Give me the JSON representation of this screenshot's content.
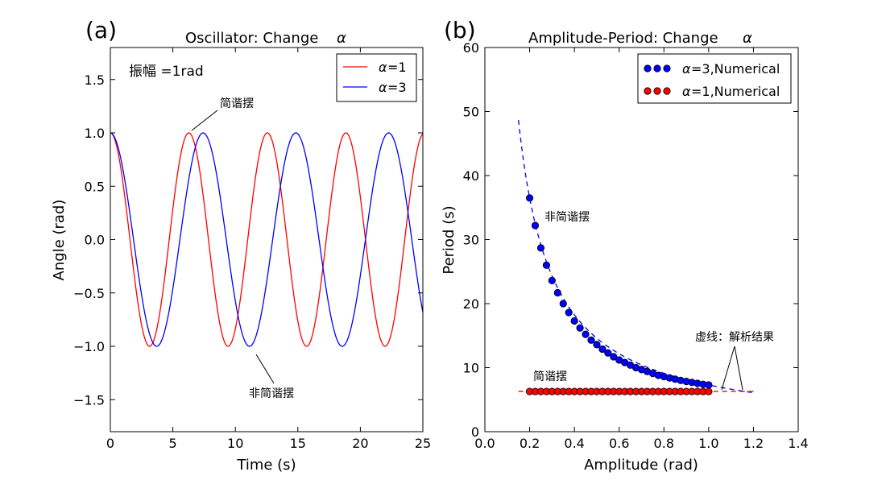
{
  "chart_data": [
    {
      "panel": "(a)",
      "type": "line",
      "title": "Oscillator: Change",
      "title_symbol": "α",
      "xlabel": "Time (s)",
      "ylabel": "Angle (rad)",
      "xlim": [
        0,
        25
      ],
      "ylim": [
        -1.8,
        1.8
      ],
      "xticks": [
        "0",
        "5",
        "10",
        "15",
        "20",
        "25"
      ],
      "xtick_values": [
        0,
        5,
        10,
        15,
        20,
        25
      ],
      "yticks": [
        "−1.5",
        "−1.0",
        "−0.5",
        "0.0",
        "0.5",
        "1.0",
        "1.5"
      ],
      "ytick_values": [
        -1.5,
        -1.0,
        -0.5,
        0.0,
        0.5,
        1.0,
        1.5
      ],
      "series": [
        {
          "name": "α=1",
          "color": "#ff0000",
          "amplitude": 1.0,
          "period": 6.28,
          "phase": "cos"
        },
        {
          "name": "α=3",
          "color": "#0000ff",
          "amplitude": 1.0,
          "period": 7.42,
          "phase": "cos"
        }
      ],
      "legend": {
        "position": "upper-right",
        "entries": [
          {
            "symbol": "α",
            "text": "=1",
            "color": "#ff0000"
          },
          {
            "symbol": "α",
            "text": "=3",
            "color": "#0000ff"
          }
        ]
      },
      "annotations": [
        {
          "id": "amp",
          "text": "振幅 =1rad"
        },
        {
          "id": "shm",
          "text": "简谐摆"
        },
        {
          "id": "nonshm",
          "text": "非简谐摆"
        }
      ]
    },
    {
      "panel": "(b)",
      "type": "scatter",
      "title": "Amplitude-Period: Change",
      "title_symbol": "α",
      "xlabel": "Amplitude (rad)",
      "ylabel": "Period (s)",
      "xlim": [
        0.0,
        1.4
      ],
      "ylim": [
        0,
        60
      ],
      "xticks": [
        "0.0",
        "0.2",
        "0.4",
        "0.6",
        "0.8",
        "1.0",
        "1.2",
        "1.4"
      ],
      "xtick_values": [
        0.0,
        0.2,
        0.4,
        0.6,
        0.8,
        1.0,
        1.2,
        1.4
      ],
      "yticks": [
        "0",
        "10",
        "20",
        "30",
        "40",
        "50",
        "60"
      ],
      "ytick_values": [
        0,
        10,
        20,
        30,
        40,
        50,
        60
      ],
      "series": [
        {
          "name": "α=3,Numerical",
          "color": "#0000ff",
          "x": [
            0.2,
            0.225,
            0.25,
            0.275,
            0.3,
            0.325,
            0.35,
            0.375,
            0.4,
            0.425,
            0.45,
            0.475,
            0.5,
            0.525,
            0.55,
            0.575,
            0.6,
            0.625,
            0.65,
            0.675,
            0.7,
            0.725,
            0.75,
            0.775,
            0.8,
            0.825,
            0.85,
            0.875,
            0.9,
            0.925,
            0.95,
            0.975,
            1.0
          ],
          "y": [
            36.5,
            32.2,
            28.7,
            26.0,
            23.6,
            21.7,
            20.0,
            18.6,
            17.3,
            16.2,
            15.2,
            14.3,
            13.6,
            12.9,
            12.3,
            11.7,
            11.2,
            10.8,
            10.4,
            10.0,
            9.7,
            9.4,
            9.1,
            8.8,
            8.6,
            8.4,
            8.2,
            8.0,
            7.85,
            7.7,
            7.55,
            7.4,
            7.3
          ]
        },
        {
          "name": "α=1,Numerical",
          "color": "#ff0000",
          "x": [
            0.2,
            0.225,
            0.25,
            0.275,
            0.3,
            0.325,
            0.35,
            0.375,
            0.4,
            0.425,
            0.45,
            0.475,
            0.5,
            0.525,
            0.55,
            0.575,
            0.6,
            0.625,
            0.65,
            0.675,
            0.7,
            0.725,
            0.75,
            0.775,
            0.8,
            0.825,
            0.85,
            0.875,
            0.9,
            0.925,
            0.95,
            0.975,
            1.0
          ],
          "y": [
            6.28,
            6.28,
            6.28,
            6.28,
            6.28,
            6.28,
            6.28,
            6.28,
            6.28,
            6.28,
            6.28,
            6.28,
            6.28,
            6.28,
            6.28,
            6.28,
            6.28,
            6.28,
            6.28,
            6.28,
            6.28,
            6.28,
            6.28,
            6.28,
            6.28,
            6.28,
            6.28,
            6.28,
            6.28,
            6.28,
            6.28,
            6.28,
            6.28
          ]
        }
      ],
      "analytic": [
        {
          "name": "analytic α=3",
          "color": "#0000ff",
          "style": "dashed",
          "x_range": [
            0.15,
            1.2
          ],
          "formula": "7.3/x"
        },
        {
          "name": "analytic α=1",
          "color": "#ff0000",
          "style": "dashed",
          "x_range": [
            0.15,
            1.2
          ],
          "formula": "6.28"
        }
      ],
      "legend": {
        "position": "upper-right",
        "entries": [
          {
            "symbol": "α",
            "text": "=3,Numerical",
            "color": "#0000ff"
          },
          {
            "symbol": "α",
            "text": "=1,Numerical",
            "color": "#ff0000"
          }
        ]
      },
      "annotations": [
        {
          "id": "nonshm",
          "text": "非简谐摆"
        },
        {
          "id": "shm",
          "text": "简谐摆"
        },
        {
          "id": "dash",
          "text": "虚线：解析结果"
        }
      ]
    }
  ]
}
